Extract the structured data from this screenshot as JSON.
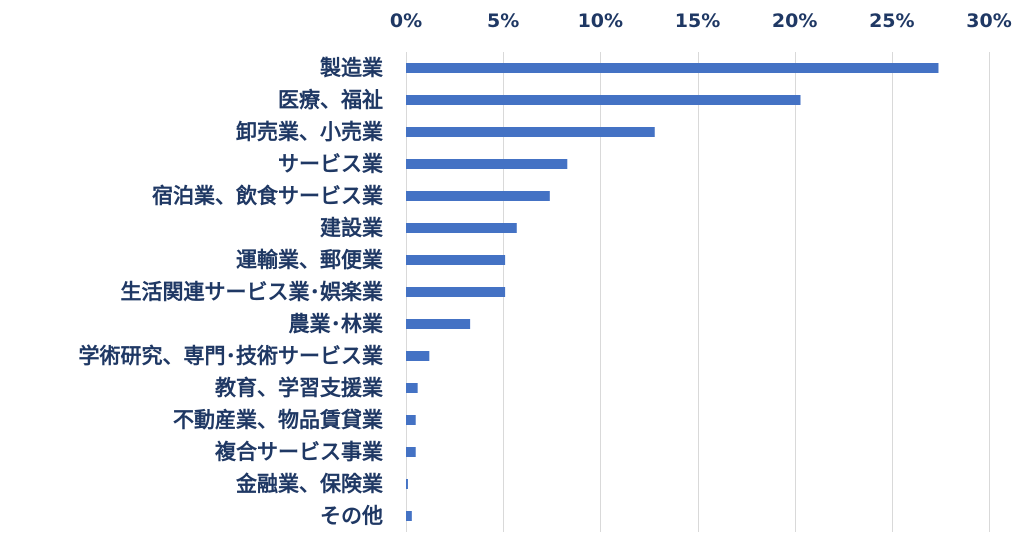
{
  "chart_data": {
    "type": "bar",
    "orientation": "horizontal",
    "title": "",
    "xlabel": "",
    "ylabel": "",
    "xlim": [
      0,
      30
    ],
    "x_ticks": [
      0,
      5,
      10,
      15,
      20,
      25,
      30
    ],
    "x_tick_labels": [
      "0%",
      "5%",
      "10%",
      "15%",
      "20%",
      "25%",
      "30%"
    ],
    "x_axis_position": "top",
    "grid": true,
    "legend": "none",
    "bar_color": "#4472c4",
    "text_color": "#1f3864",
    "categories": [
      "製造業",
      "医療、福祉",
      "卸売業、小売業",
      "サービス業",
      "宿泊業、飲食サービス業",
      "建設業",
      "運輸業、郵便業",
      "生活関連サービス業･娯楽業",
      "農業･林業",
      "学術研究、専門･技術サービス業",
      "教育、学習支援業",
      "不動産業、物品賃貸業",
      "複合サービス事業",
      "金融業、保険業",
      "その他"
    ],
    "values": [
      27.4,
      20.3,
      12.8,
      8.3,
      7.4,
      5.7,
      5.1,
      5.1,
      3.3,
      1.2,
      0.6,
      0.5,
      0.5,
      0.1,
      0.3
    ]
  }
}
